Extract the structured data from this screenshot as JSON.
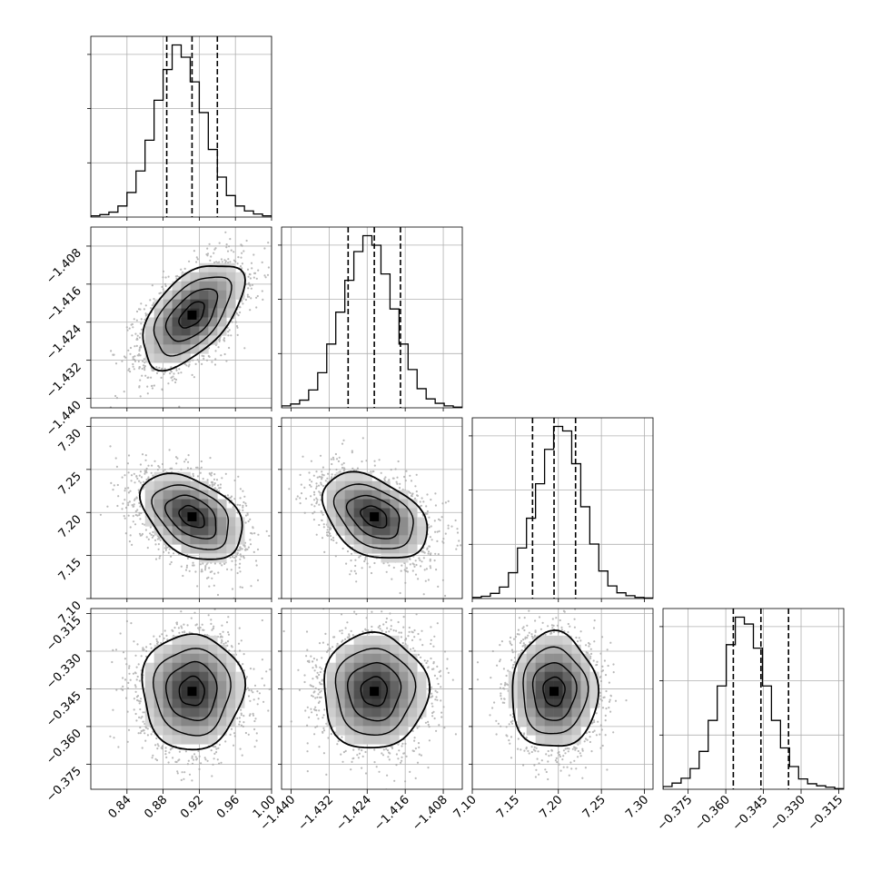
{
  "chart_data": {
    "type": "corner",
    "parameters": 4,
    "grid": true,
    "params": [
      {
        "index": 0,
        "axis_range": [
          0.8,
          1.0
        ],
        "ticks": [
          "0.84",
          "0.88",
          "0.92",
          "0.96",
          "1.00"
        ],
        "mean": 0.912,
        "sd": 0.028,
        "quantiles": [
          0.884,
          0.912,
          0.94
        ],
        "histogram": {
          "bin_start": 0.8,
          "bin_width": 0.01,
          "counts": [
            2,
            4,
            8,
            18,
            40,
            75,
            125,
            190,
            240,
            280,
            260,
            220,
            170,
            110,
            65,
            35,
            18,
            10,
            5,
            2
          ]
        }
      },
      {
        "index": 1,
        "axis_range": [
          -1.442,
          -1.404
        ],
        "ticks": [
          "−1.440",
          "−1.432",
          "−1.424",
          "−1.416",
          "−1.408"
        ],
        "mean": -1.4225,
        "sd": 0.0055,
        "quantiles": [
          -1.428,
          -1.4225,
          -1.417
        ],
        "histogram": {
          "bin_start": -1.442,
          "bin_width": 0.0019,
          "counts": [
            3,
            6,
            12,
            28,
            55,
            100,
            150,
            200,
            245,
            270,
            255,
            210,
            155,
            100,
            60,
            30,
            14,
            7,
            3,
            1
          ]
        }
      },
      {
        "index": 2,
        "axis_range": [
          7.1,
          7.31
        ],
        "ticks": [
          "7.10",
          "7.15",
          "7.20",
          "7.25",
          "7.30"
        ],
        "mean": 7.195,
        "sd": 0.025,
        "quantiles": [
          7.17,
          7.195,
          7.22
        ],
        "histogram": {
          "bin_start": 7.1,
          "bin_width": 0.0105,
          "counts": [
            2,
            4,
            9,
            20,
            45,
            88,
            140,
            200,
            260,
            300,
            292,
            235,
            160,
            95,
            48,
            22,
            10,
            5,
            2,
            1
          ]
        }
      },
      {
        "index": 3,
        "axis_range": [
          -0.385,
          -0.313
        ],
        "ticks": [
          "−0.375",
          "−0.360",
          "−0.345",
          "−0.330",
          "−0.315"
        ],
        "mean": -0.346,
        "sd": 0.0115,
        "quantiles": [
          -0.357,
          -0.346,
          -0.335
        ],
        "histogram": {
          "bin_start": -0.385,
          "bin_width": 0.0036,
          "counts": [
            4,
            9,
            16,
            30,
            55,
            100,
            150,
            210,
            250,
            240,
            205,
            150,
            100,
            60,
            33,
            15,
            8,
            5,
            3,
            1
          ]
        }
      }
    ],
    "y_ticks": {
      "1": [
        "−1.440",
        "−1.432",
        "−1.424",
        "−1.416",
        "−1.408"
      ],
      "2": [
        "7.10",
        "7.15",
        "7.20",
        "7.25",
        "7.30"
      ],
      "3": [
        "−0.375",
        "−0.360",
        "−0.345",
        "−0.330",
        "−0.315"
      ]
    },
    "correlations": {
      "1-0": 0.55,
      "2-0": -0.4,
      "2-1": -0.38,
      "3-0": 0.0,
      "3-1": 0.0,
      "3-2": 0.0
    },
    "samples_per_panel": 2500,
    "colors": {
      "line": "#000000",
      "points": "#a8a8a8",
      "grid": "#b0b0b0"
    }
  }
}
